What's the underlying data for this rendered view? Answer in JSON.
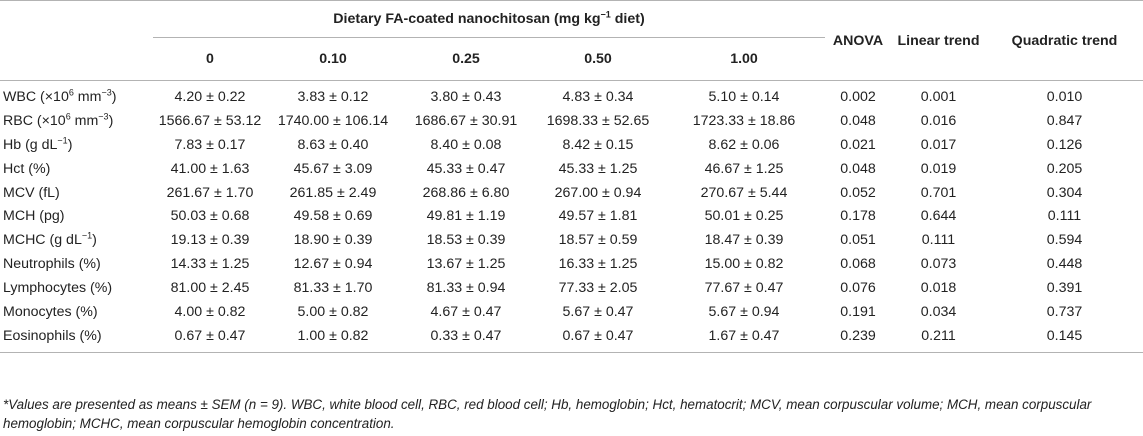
{
  "header": {
    "group_title_pre": "Dietary FA-coated nanochitosan (mg kg",
    "group_title_sup": "−1",
    "group_title_post": " diet)",
    "doses": [
      "0",
      "0.10",
      "0.25",
      "0.50",
      "1.00"
    ],
    "anova": "ANOVA",
    "linear": "Linear trend",
    "quadratic": "Quadratic trend"
  },
  "rows": [
    {
      "pre": "WBC (×10",
      "sup1": "6",
      "mid": " mm",
      "sup2": "−3",
      "post": ")",
      "values": [
        "4.20 ± 0.22",
        "3.83 ± 0.12",
        "3.80 ± 0.43",
        "4.83 ± 0.34",
        "5.10 ± 0.14"
      ],
      "anova": "0.002",
      "linear": "0.001",
      "quadratic": "0.010"
    },
    {
      "pre": "RBC (×10",
      "sup1": "6",
      "mid": " mm",
      "sup2": "−3",
      "post": ")",
      "values": [
        "1566.67 ± 53.12",
        "1740.00 ± 106.14",
        "1686.67 ± 30.91",
        "1698.33 ± 52.65",
        "1723.33 ± 18.86"
      ],
      "anova": "0.048",
      "linear": "0.016",
      "quadratic": "0.847"
    },
    {
      "pre": "Hb (g dL",
      "sup1": "",
      "mid": "",
      "sup2": "−1",
      "post": ")",
      "values": [
        "7.83 ± 0.17",
        "8.63 ± 0.40",
        "8.40 ± 0.08",
        "8.42 ± 0.15",
        "8.62 ± 0.06"
      ],
      "anova": "0.021",
      "linear": "0.017",
      "quadratic": "0.126"
    },
    {
      "pre": "Hct (%)",
      "sup1": "",
      "mid": "",
      "sup2": "",
      "post": "",
      "values": [
        "41.00 ± 1.63",
        "45.67 ± 3.09",
        "45.33 ± 0.47",
        "45.33 ± 1.25",
        "46.67 ± 1.25"
      ],
      "anova": "0.048",
      "linear": "0.019",
      "quadratic": "0.205"
    },
    {
      "pre": "MCV (fL)",
      "sup1": "",
      "mid": "",
      "sup2": "",
      "post": "",
      "values": [
        "261.67 ± 1.70",
        "261.85 ± 2.49",
        "268.86 ± 6.80",
        "267.00 ± 0.94",
        "270.67 ± 5.44"
      ],
      "anova": "0.052",
      "linear": "0.701",
      "quadratic": "0.304"
    },
    {
      "pre": "MCH (pg)",
      "sup1": "",
      "mid": "",
      "sup2": "",
      "post": "",
      "values": [
        "50.03 ± 0.68",
        "49.58 ± 0.69",
        "49.81 ± 1.19",
        "49.57 ± 1.81",
        "50.01 ± 0.25"
      ],
      "anova": "0.178",
      "linear": "0.644",
      "quadratic": "0.111"
    },
    {
      "pre": "MCHC (g dL",
      "sup1": "",
      "mid": "",
      "sup2": "−1",
      "post": ")",
      "values": [
        "19.13 ± 0.39",
        "18.90 ± 0.39",
        "18.53 ± 0.39",
        "18.57 ± 0.59",
        "18.47 ± 0.39"
      ],
      "anova": "0.051",
      "linear": "0.111",
      "quadratic": "0.594"
    },
    {
      "pre": "Neutrophils (%)",
      "sup1": "",
      "mid": "",
      "sup2": "",
      "post": "",
      "values": [
        "14.33 ± 1.25",
        "12.67 ± 0.94",
        "13.67 ± 1.25",
        "16.33 ± 1.25",
        "15.00 ± 0.82"
      ],
      "anova": "0.068",
      "linear": "0.073",
      "quadratic": "0.448"
    },
    {
      "pre": "Lymphocytes (%)",
      "sup1": "",
      "mid": "",
      "sup2": "",
      "post": "",
      "values": [
        "81.00 ± 2.45",
        "81.33 ± 1.70",
        "81.33 ± 0.94",
        "77.33 ± 2.05",
        "77.67 ± 0.47"
      ],
      "anova": "0.076",
      "linear": "0.018",
      "quadratic": "0.391"
    },
    {
      "pre": "Monocytes (%)",
      "sup1": "",
      "mid": "",
      "sup2": "",
      "post": "",
      "values": [
        "4.00 ± 0.82",
        "5.00 ± 0.82",
        "4.67 ± 0.47",
        "5.67 ± 0.47",
        "5.67 ± 0.94"
      ],
      "anova": "0.191",
      "linear": "0.034",
      "quadratic": "0.737"
    },
    {
      "pre": "Eosinophils (%)",
      "sup1": "",
      "mid": "",
      "sup2": "",
      "post": "",
      "values": [
        "0.67 ± 0.47",
        "1.00 ± 0.82",
        "0.33 ± 0.47",
        "0.67 ± 0.47",
        "1.67 ± 0.47"
      ],
      "anova": "0.239",
      "linear": "0.211",
      "quadratic": "0.145"
    }
  ],
  "footnote": "*Values are presented as means ± SEM (n = 9). WBC, white blood cell, RBC, red blood cell; Hb, hemoglobin; Hct, hematocrit; MCV, mean corpuscular volume; MCH, mean corpuscular hemoglobin; MCHC, mean corpuscular hemoglobin concentration."
}
